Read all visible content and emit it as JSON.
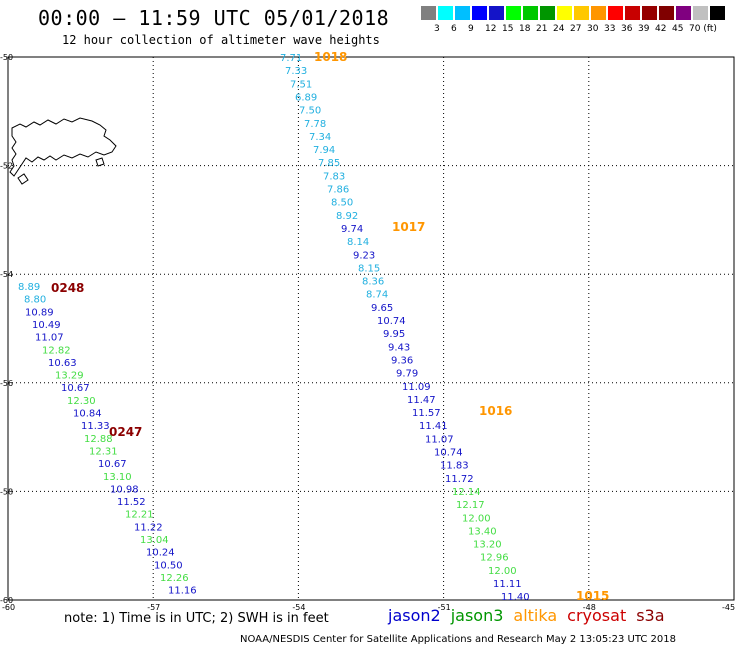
{
  "title": "00:00 – 11:59 UTC 05/01/2018",
  "subtitle": "12 hour collection of altimeter wave heights",
  "colorbar": {
    "colors": [
      "#808080",
      "#00ffff",
      "#00bfff",
      "#0000ff",
      "#1414c8",
      "#00ff00",
      "#00c800",
      "#009600",
      "#ffff00",
      "#ffc800",
      "#ff9600",
      "#ff0000",
      "#c80000",
      "#960000",
      "#800000",
      "#800080",
      "#c0c0c0",
      "#000000"
    ],
    "labels": [
      "3",
      "6",
      "9",
      "12",
      "15",
      "18",
      "21",
      "24",
      "27",
      "30",
      "33",
      "36",
      "39",
      "42",
      "45",
      "70 (ft)"
    ]
  },
  "axes": {
    "lat_ticks": [
      "-50",
      "-52",
      "-54",
      "-56",
      "-58",
      "-60"
    ],
    "lon_ticks": [
      "-60",
      "-57",
      "-54",
      "-51",
      "-48",
      "-45"
    ]
  },
  "tracks": [
    {
      "time": "1018",
      "values": [
        "7.71",
        "7.33",
        "7.51",
        "6.89",
        "7.50",
        "7.78",
        "7.34",
        "7.94",
        "7.85",
        "7.83",
        "7.86",
        "8.50",
        "8.92",
        "9.74",
        "8.14",
        "9.23",
        "8.15",
        "8.36",
        "8.74",
        "9.65",
        "10.74",
        "9.95",
        "9.43",
        "9.36",
        "9.79",
        "11.09",
        "11.47",
        "11.57",
        "11.41",
        "11.07",
        "10.74",
        "11.83",
        "11.72",
        "12.14",
        "12.17",
        "12.00",
        "13.40",
        "13.20",
        "12.96",
        "12.00",
        "11.11",
        "11.40"
      ]
    },
    {
      "time": "1017"
    },
    {
      "time": "1016"
    },
    {
      "time": "1015"
    },
    {
      "time": "0248",
      "values": [
        "8.89",
        "8.80",
        "10.89",
        "10.49",
        "11.07",
        "12.82",
        "10.63",
        "13.29",
        "10.67",
        "12.30",
        "10.84",
        "11.33",
        "12.88",
        "12.31",
        "10.67",
        "13.10",
        "10.98",
        "11.52",
        "12.21",
        "11.22",
        "13.04",
        "10.24",
        "10.50",
        "12.26",
        "11.16"
      ]
    },
    {
      "time": "0247"
    }
  ],
  "note": "note:  1) Time is in UTC;  2) SWH is in feet",
  "legend": [
    {
      "name": "jason2",
      "color": "#0000cc"
    },
    {
      "name": "jason3",
      "color": "#009600"
    },
    {
      "name": "altika",
      "color": "#ff9600"
    },
    {
      "name": "cryosat",
      "color": "#cc0000"
    },
    {
      "name": "s3a",
      "color": "#8b0000"
    }
  ],
  "credit": "NOAA/NESDIS Center for Satellite Applications and Research    May  2 13:05:23 UTC 2018"
}
